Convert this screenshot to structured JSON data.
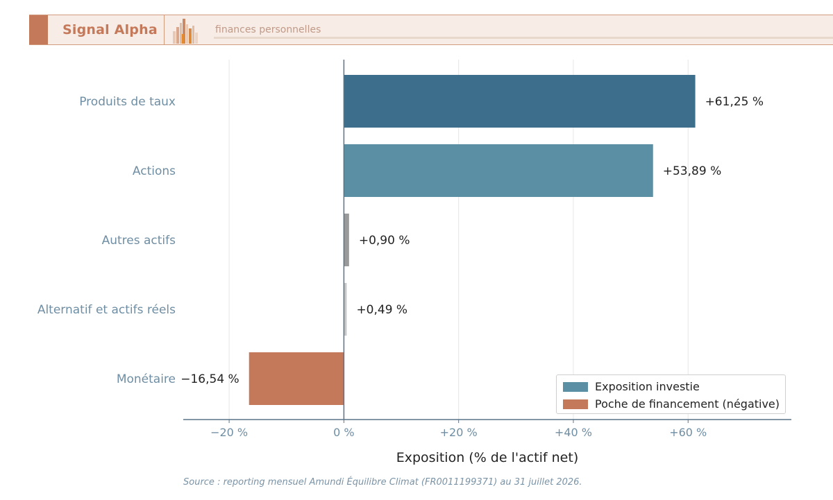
{
  "header": {
    "brand": "Signal Alpha",
    "tagline": "finances personnelles",
    "accent_color": "#c47a5a"
  },
  "chart_data": {
    "type": "bar",
    "orientation": "horizontal",
    "categories": [
      "Produits de taux",
      "Actions",
      "Autres actifs",
      "Alternatif et actifs réels",
      "Monétaire"
    ],
    "values": [
      61.25,
      53.89,
      0.9,
      0.49,
      -16.54
    ],
    "value_labels": [
      "+61,25 %",
      "+53,89 %",
      "+0,90 %",
      "+0,49 %",
      "−16,54 %"
    ],
    "bar_colors": [
      "#3d6e8b",
      "#5b8fa3",
      "#9a9a9a",
      "#c8c8c8",
      "#c47a5a"
    ],
    "xlabel": "Exposition (% de l'actif net)",
    "xlim": [
      -28,
      78
    ],
    "xticks": [
      -20,
      0,
      20,
      40,
      60
    ],
    "xtick_labels": [
      "−20 %",
      "0 %",
      "+20 %",
      "+40 %",
      "+60 %"
    ],
    "grid": "vertical",
    "legend": {
      "placement": "lower-right",
      "entries": [
        {
          "label": "Exposition investie",
          "color": "#5b8fa3"
        },
        {
          "label": "Poche de financement (négative)",
          "color": "#c47a5a"
        }
      ]
    }
  },
  "footer": {
    "source": "Source : reporting mensuel Amundi Équilibre Climat (FR0011199371) au 31 juillet 2026."
  }
}
